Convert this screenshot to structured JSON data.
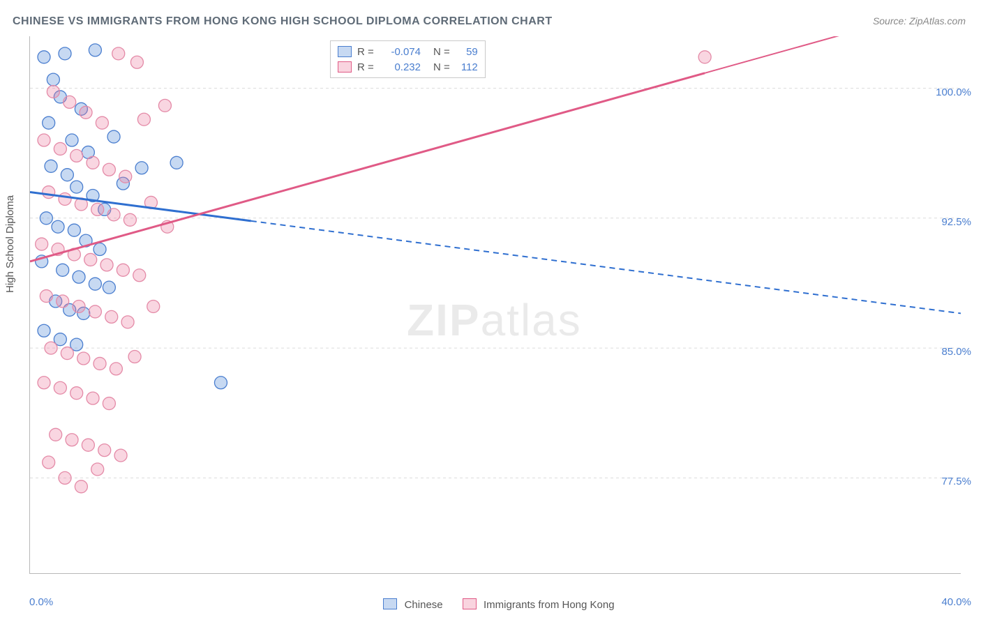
{
  "title": "CHINESE VS IMMIGRANTS FROM HONG KONG HIGH SCHOOL DIPLOMA CORRELATION CHART",
  "source": "Source: ZipAtlas.com",
  "ylabel": "High School Diploma",
  "watermark_a": "ZIP",
  "watermark_b": "atlas",
  "xaxis": {
    "min": 0.0,
    "max": 40.0,
    "ticks": [
      0,
      5,
      10,
      15,
      20,
      25,
      30,
      35,
      40
    ],
    "label_left": "0.0%",
    "label_right": "40.0%"
  },
  "yaxis": {
    "min": 72.0,
    "max": 103.0,
    "grid": [
      77.5,
      85.0,
      92.5,
      100.0
    ],
    "labels": [
      "77.5%",
      "85.0%",
      "92.5%",
      "100.0%"
    ]
  },
  "colors": {
    "blue_line": "#2f6fd0",
    "blue_fill": "rgba(108,156,220,0.38)",
    "blue_stroke": "#4a7ecf",
    "pink_line": "#e05a86",
    "pink_fill": "rgba(235,120,155,0.30)",
    "pink_stroke": "#e48aa7",
    "grid": "#dcdcdc",
    "axis": "#b8b8b8",
    "tick_text": "#4a7ecf",
    "label_text": "#555555"
  },
  "marker_radius": 9,
  "series": [
    {
      "name": "Chinese",
      "legend_label": "Chinese",
      "R": "-0.074",
      "N": "59",
      "color_fill_key": "blue_fill",
      "color_stroke_key": "blue_stroke",
      "trend": {
        "y_at_x0": 94.0,
        "y_at_x40": 87.0,
        "solid_x_end": 9.5
      },
      "points": [
        [
          0.6,
          101.8
        ],
        [
          1.0,
          100.5
        ],
        [
          1.5,
          102.0
        ],
        [
          2.8,
          102.2
        ],
        [
          1.3,
          99.5
        ],
        [
          2.2,
          98.8
        ],
        [
          0.8,
          98.0
        ],
        [
          1.8,
          97.0
        ],
        [
          2.5,
          96.3
        ],
        [
          3.6,
          97.2
        ],
        [
          0.9,
          95.5
        ],
        [
          1.6,
          95.0
        ],
        [
          2.0,
          94.3
        ],
        [
          2.7,
          93.8
        ],
        [
          3.2,
          93.0
        ],
        [
          4.0,
          94.5
        ],
        [
          4.8,
          95.4
        ],
        [
          6.3,
          95.7
        ],
        [
          0.7,
          92.5
        ],
        [
          1.2,
          92.0
        ],
        [
          1.9,
          91.8
        ],
        [
          2.4,
          91.2
        ],
        [
          3.0,
          90.7
        ],
        [
          0.5,
          90.0
        ],
        [
          1.4,
          89.5
        ],
        [
          2.1,
          89.1
        ],
        [
          2.8,
          88.7
        ],
        [
          3.4,
          88.5
        ],
        [
          1.1,
          87.7
        ],
        [
          1.7,
          87.2
        ],
        [
          2.3,
          87.0
        ],
        [
          0.6,
          86.0
        ],
        [
          1.3,
          85.5
        ],
        [
          2.0,
          85.2
        ],
        [
          8.2,
          83.0
        ]
      ]
    },
    {
      "name": "Immigrants from Hong Kong",
      "legend_label": "Immigrants from Hong Kong",
      "R": "0.232",
      "N": "112",
      "color_fill_key": "pink_fill",
      "color_stroke_key": "pink_stroke",
      "trend": {
        "y_at_x0": 90.0,
        "y_at_x40": 105.0,
        "solid_x_end": 29.0
      },
      "points": [
        [
          3.8,
          102.0
        ],
        [
          4.6,
          101.5
        ],
        [
          1.0,
          99.8
        ],
        [
          1.7,
          99.2
        ],
        [
          2.4,
          98.6
        ],
        [
          3.1,
          98.0
        ],
        [
          4.9,
          98.2
        ],
        [
          0.6,
          97.0
        ],
        [
          1.3,
          96.5
        ],
        [
          2.0,
          96.1
        ],
        [
          2.7,
          95.7
        ],
        [
          3.4,
          95.3
        ],
        [
          4.1,
          94.9
        ],
        [
          5.8,
          99.0
        ],
        [
          0.8,
          94.0
        ],
        [
          1.5,
          93.6
        ],
        [
          2.2,
          93.3
        ],
        [
          2.9,
          93.0
        ],
        [
          3.6,
          92.7
        ],
        [
          4.3,
          92.4
        ],
        [
          5.2,
          93.4
        ],
        [
          5.9,
          92.0
        ],
        [
          0.5,
          91.0
        ],
        [
          1.2,
          90.7
        ],
        [
          1.9,
          90.4
        ],
        [
          2.6,
          90.1
        ],
        [
          3.3,
          89.8
        ],
        [
          4.0,
          89.5
        ],
        [
          4.7,
          89.2
        ],
        [
          0.7,
          88.0
        ],
        [
          1.4,
          87.7
        ],
        [
          2.1,
          87.4
        ],
        [
          2.8,
          87.1
        ],
        [
          3.5,
          86.8
        ],
        [
          4.2,
          86.5
        ],
        [
          5.3,
          87.4
        ],
        [
          0.9,
          85.0
        ],
        [
          1.6,
          84.7
        ],
        [
          2.3,
          84.4
        ],
        [
          3.0,
          84.1
        ],
        [
          3.7,
          83.8
        ],
        [
          0.6,
          83.0
        ],
        [
          1.3,
          82.7
        ],
        [
          2.0,
          82.4
        ],
        [
          2.7,
          82.1
        ],
        [
          3.4,
          81.8
        ],
        [
          4.5,
          84.5
        ],
        [
          1.1,
          80.0
        ],
        [
          1.8,
          79.7
        ],
        [
          2.5,
          79.4
        ],
        [
          3.2,
          79.1
        ],
        [
          3.9,
          78.8
        ],
        [
          0.8,
          78.4
        ],
        [
          1.5,
          77.5
        ],
        [
          2.2,
          77.0
        ],
        [
          2.9,
          78.0
        ],
        [
          29.0,
          101.8
        ]
      ]
    }
  ],
  "legend_box": {
    "r_label": "R =",
    "n_label": "N ="
  }
}
